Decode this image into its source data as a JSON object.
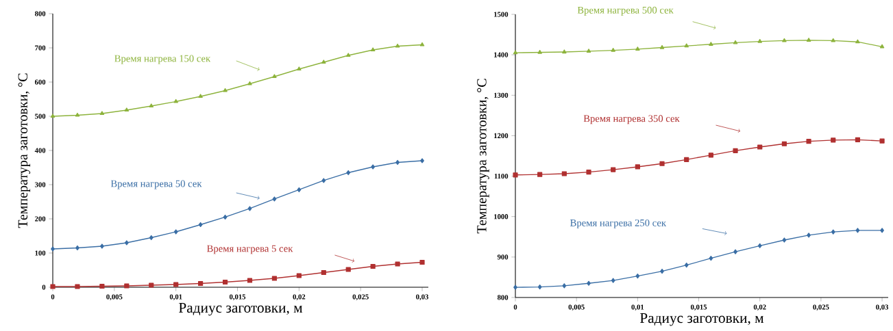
{
  "chart_data": [
    {
      "type": "line",
      "xlabel": "Радиус заготовки, м",
      "ylabel": "Температура заготовки, °С",
      "xlim": [
        0,
        0.0305
      ],
      "ylim": [
        0,
        800
      ],
      "xticks": [
        0,
        {
          "value": 0.005,
          "label": "0,005"
        },
        {
          "value": 0.01,
          "label": "0,01"
        },
        {
          "value": 0.015,
          "label": "0,015"
        },
        {
          "value": 0.02,
          "label": "0,02"
        },
        {
          "value": 0.025,
          "label": "0,025"
        },
        {
          "value": 0.03,
          "label": "0,03"
        }
      ],
      "yticks": [
        0,
        100,
        200,
        300,
        400,
        500,
        600,
        700,
        800
      ],
      "grid": false,
      "legend": false,
      "x": [
        0,
        0.002,
        0.004,
        0.006,
        0.008,
        0.01,
        0.012,
        0.014,
        0.016,
        0.018,
        0.02,
        0.022,
        0.024,
        0.026,
        0.028,
        0.03
      ],
      "series": [
        {
          "name": "Время нагрева 150 сек",
          "color": "#8db33c",
          "marker": "triangle",
          "values": [
            500,
            503,
            508,
            518,
            530,
            543,
            558,
            575,
            595,
            616,
            638,
            658,
            678,
            694,
            705,
            709
          ]
        },
        {
          "name": "Время нагрева 50 сек",
          "color": "#3a6ea5",
          "marker": "diamond",
          "values": [
            112,
            115,
            120,
            130,
            145,
            162,
            183,
            205,
            230,
            258,
            285,
            312,
            335,
            352,
            365,
            370
          ]
        },
        {
          "name": "Время нагрева 5 сек",
          "color": "#b03030",
          "marker": "square",
          "values": [
            2,
            2,
            3,
            4,
            6,
            8,
            11,
            15,
            20,
            26,
            34,
            43,
            52,
            61,
            68,
            73
          ]
        }
      ]
    },
    {
      "type": "line",
      "xlabel": "Радиус заготовки, м",
      "ylabel": "Температура заготовки, °С",
      "xlim": [
        0,
        0.0305
      ],
      "ylim": [
        800,
        1500
      ],
      "xticks": [
        0,
        {
          "value": 0.005,
          "label": "0,005"
        },
        {
          "value": 0.01,
          "label": "0,01"
        },
        {
          "value": 0.015,
          "label": "0,015"
        },
        {
          "value": 0.02,
          "label": "0,02"
        },
        {
          "value": 0.025,
          "label": "0,025"
        },
        {
          "value": 0.03,
          "label": "0,03"
        }
      ],
      "yticks": [
        800,
        900,
        1000,
        1100,
        1200,
        1300,
        1400,
        1500
      ],
      "grid": false,
      "legend": false,
      "x": [
        0,
        0.002,
        0.004,
        0.006,
        0.008,
        0.01,
        0.012,
        0.014,
        0.016,
        0.018,
        0.02,
        0.022,
        0.024,
        0.026,
        0.028,
        0.03
      ],
      "series": [
        {
          "name": "Время нагрева 500 сек",
          "color": "#8db33c",
          "marker": "triangle",
          "values": [
            1405,
            1406,
            1407,
            1409,
            1411,
            1414,
            1418,
            1422,
            1426,
            1430,
            1433,
            1435,
            1436,
            1435,
            1432,
            1420
          ]
        },
        {
          "name": "Время нагрева 350 сек",
          "color": "#b03030",
          "marker": "square",
          "values": [
            1103,
            1104,
            1106,
            1110,
            1116,
            1123,
            1131,
            1141,
            1152,
            1163,
            1172,
            1180,
            1186,
            1189,
            1190,
            1187
          ]
        },
        {
          "name": "Время нагрева 250 сек",
          "color": "#3a6ea5",
          "marker": "diamond",
          "values": [
            825,
            826,
            829,
            835,
            842,
            853,
            865,
            880,
            897,
            913,
            928,
            942,
            954,
            962,
            966,
            966
          ]
        }
      ]
    }
  ]
}
